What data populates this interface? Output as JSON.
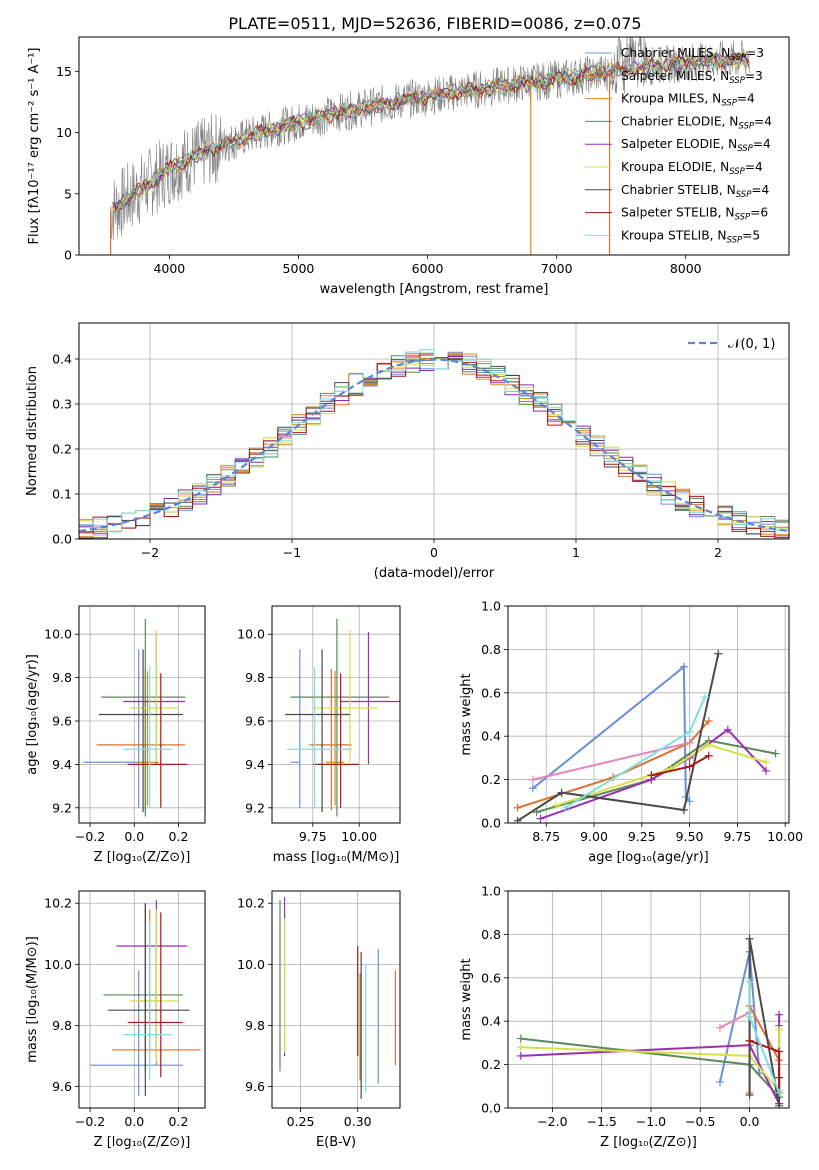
{
  "title": "PLATE=0511, MJD=52636, FIBERID=0086, z=0.075",
  "colors": [
    "#6a8fd8",
    "#e0892c",
    "#d67a1a",
    "#5a8a5a",
    "#8a2fa8",
    "#d6d64a",
    "#4a4a4a",
    "#a81818",
    "#7fd6d6"
  ],
  "chart_data": [
    {
      "id": "spectrum",
      "type": "line",
      "xlabel": "wavelength [Angstrom, rest frame]",
      "ylabel": "Flux [fλ10⁻¹⁷ erg cm⁻² s⁻¹ A⁻¹]",
      "xlim": [
        3300,
        8800
      ],
      "ylim": [
        0,
        17.8
      ],
      "xticks": [
        4000,
        5000,
        6000,
        7000,
        8000
      ],
      "yticks": [
        0,
        5,
        10,
        15
      ],
      "grid": false,
      "legend_position": "top-right",
      "legend": [
        {
          "label": "Chabrier MILES, N",
          "sub": "SSP",
          "suffix": "=3",
          "color": "#6a8fd8"
        },
        {
          "label": "Salpeter MILES, N",
          "sub": "SSP",
          "suffix": "=3",
          "color": "#e07030"
        },
        {
          "label": "Kroupa MILES, N",
          "sub": "SSP",
          "suffix": "=4",
          "color": "#d68a1a"
        },
        {
          "label": "Chabrier ELODIE, N",
          "sub": "SSP",
          "suffix": "=4",
          "color": "#5a8a5a"
        },
        {
          "label": "Salpeter ELODIE, N",
          "sub": "SSP",
          "suffix": "=4",
          "color": "#9a2fb0"
        },
        {
          "label": "Kroupa ELODIE, N",
          "sub": "SSP",
          "suffix": "=4",
          "color": "#d6e04a"
        },
        {
          "label": "Chabrier STELIB, N",
          "sub": "SSP",
          "suffix": "=4",
          "color": "#4a4a4a"
        },
        {
          "label": "Salpeter STELIB, N",
          "sub": "SSP",
          "suffix": "=6",
          "color": "#a81818"
        },
        {
          "label": "Kroupa STELIB, N",
          "sub": "SSP",
          "suffix": "=5",
          "color": "#80dede"
        }
      ],
      "model_continuum": {
        "x": [
          3550,
          3700,
          3850,
          4000,
          4150,
          4300,
          4500,
          4700,
          4900,
          5100,
          5300,
          5500,
          5700,
          5900,
          6100,
          6300,
          6500,
          6700,
          6900,
          7100,
          7300,
          7500,
          7700,
          7900,
          8100,
          8300,
          8500
        ],
        "y": [
          3.6,
          4.8,
          5.9,
          7.0,
          7.8,
          8.5,
          9.3,
          10.0,
          10.6,
          11.1,
          11.6,
          12.0,
          12.4,
          12.8,
          13.1,
          13.4,
          13.7,
          14.0,
          14.2,
          14.5,
          14.8,
          15.1,
          15.4,
          15.6,
          15.8,
          15.9,
          16.0
        ]
      }
    },
    {
      "id": "residuals",
      "type": "histogram",
      "xlabel": "(data-model)/error",
      "ylabel": "Normed distribution",
      "xlim": [
        -2.5,
        2.5
      ],
      "ylim": [
        0,
        0.48
      ],
      "xticks": [
        -2,
        -1,
        0,
        1,
        2
      ],
      "yticks": [
        0.0,
        0.1,
        0.2,
        0.3,
        0.4
      ],
      "grid": true,
      "legend_position": "top-right",
      "legend": [
        {
          "label": "𝒩(0, 1)",
          "color": "#5b86d6",
          "style": "dashed"
        }
      ]
    },
    {
      "id": "age-vs-Z",
      "type": "errorbar",
      "xlabel": "Z [log₁₀(Z/Z⊙)]",
      "ylabel": "age  [log₁₀(age/yr)]",
      "xlim": [
        -0.25,
        0.32
      ],
      "ylim": [
        9.13,
        10.13
      ],
      "xticks": [
        -0.2,
        0.0,
        0.2
      ],
      "yticks": [
        9.2,
        9.4,
        9.6,
        9.8,
        10.0
      ],
      "grid": true,
      "points": [
        {
          "x": 0.02,
          "xerr": [
            0.25,
            0.0
          ],
          "y": 9.41,
          "yerr": [
            0.21,
            0.52
          ],
          "color": "#6a8fd8"
        },
        {
          "x": 0.05,
          "xerr": [
            0.22,
            0.18
          ],
          "y": 9.49,
          "yerr": [
            0.3,
            0.35
          ],
          "color": "#e07030"
        },
        {
          "x": 0.06,
          "xerr": [
            0.05,
            0.05
          ],
          "y": 9.41,
          "yerr": [
            0.2,
            0.42
          ],
          "color": "#d68a1a"
        },
        {
          "x": 0.05,
          "xerr": [
            0.2,
            0.18
          ],
          "y": 9.71,
          "yerr": [
            0.55,
            0.36
          ],
          "color": "#5a8a5a"
        },
        {
          "x": 0.1,
          "xerr": [
            0.15,
            0.13
          ],
          "y": 9.69,
          "yerr": [
            0.29,
            0.32
          ],
          "color": "#9a2fb0"
        },
        {
          "x": 0.1,
          "xerr": [
            0.12,
            0.1
          ],
          "y": 9.66,
          "yerr": [
            0.25,
            0.36
          ],
          "color": "#d6e04a"
        },
        {
          "x": 0.04,
          "xerr": [
            0.2,
            0.18
          ],
          "y": 9.63,
          "yerr": [
            0.45,
            0.3
          ],
          "color": "#4a4a4a"
        },
        {
          "x": 0.12,
          "xerr": [
            0.15,
            0.12
          ],
          "y": 9.4,
          "yerr": [
            0.2,
            0.42
          ],
          "color": "#a81818"
        },
        {
          "x": 0.07,
          "xerr": [
            0.12,
            0.1
          ],
          "y": 9.47,
          "yerr": [
            0.27,
            0.38
          ],
          "color": "#80dede"
        }
      ]
    },
    {
      "id": "age-vs-mass",
      "type": "errorbar",
      "xlabel": "mass [log₁₀(M/M⊙)]",
      "ylabel": "",
      "xlim": [
        9.53,
        10.22
      ],
      "ylim": [
        9.13,
        10.13
      ],
      "xticks": [
        9.75,
        10.0
      ],
      "yticks": [
        9.2,
        9.4,
        9.6,
        9.8,
        10.0
      ],
      "grid": true,
      "points": [
        {
          "x": 9.68,
          "xerr": [
            0.05,
            0.0
          ],
          "y": 9.41,
          "yerr": [
            0.21,
            0.52
          ],
          "color": "#6a8fd8"
        },
        {
          "x": 9.85,
          "xerr": [
            0.12,
            0.11
          ],
          "y": 9.49,
          "yerr": [
            0.3,
            0.35
          ],
          "color": "#e07030"
        },
        {
          "x": 9.87,
          "xerr": [
            0.05,
            0.05
          ],
          "y": 9.41,
          "yerr": [
            0.2,
            0.42
          ],
          "color": "#d68a1a"
        },
        {
          "x": 9.88,
          "xerr": [
            0.25,
            0.28
          ],
          "y": 9.71,
          "yerr": [
            0.55,
            0.36
          ],
          "color": "#5a8a5a"
        },
        {
          "x": 10.05,
          "xerr": [
            0.15,
            0.18
          ],
          "y": 9.69,
          "yerr": [
            0.29,
            0.32
          ],
          "color": "#9a2fb0"
        },
        {
          "x": 9.95,
          "xerr": [
            0.2,
            0.15
          ],
          "y": 9.66,
          "yerr": [
            0.25,
            0.36
          ],
          "color": "#d6e04a"
        },
        {
          "x": 9.8,
          "xerr": [
            0.2,
            0.15
          ],
          "y": 9.63,
          "yerr": [
            0.45,
            0.3
          ],
          "color": "#4a4a4a"
        },
        {
          "x": 9.9,
          "xerr": [
            0.15,
            0.1
          ],
          "y": 9.4,
          "yerr": [
            0.2,
            0.42
          ],
          "color": "#a81818"
        },
        {
          "x": 9.76,
          "xerr": [
            0.15,
            0.2
          ],
          "y": 9.47,
          "yerr": [
            0.27,
            0.38
          ],
          "color": "#80dede"
        }
      ]
    },
    {
      "id": "mass-weight-vs-age",
      "type": "line",
      "xlabel": "age  [log₁₀(age/yr)]",
      "ylabel": "mass weight",
      "xlim": [
        8.55,
        10.02
      ],
      "ylim": [
        0.0,
        1.0
      ],
      "xticks": [
        8.75,
        9.0,
        9.25,
        9.5,
        9.75,
        10.0
      ],
      "yticks": [
        0.0,
        0.2,
        0.4,
        0.6,
        0.8,
        1.0
      ],
      "grid": true,
      "series": [
        {
          "color": "#6a8fd8",
          "x": [
            8.68,
            9.47,
            9.48,
            9.5
          ],
          "y": [
            0.16,
            0.72,
            0.12,
            0.1
          ]
        },
        {
          "color": "#e07030",
          "x": [
            8.6,
            9.1,
            9.5,
            9.6
          ],
          "y": [
            0.07,
            0.21,
            0.37,
            0.47
          ]
        },
        {
          "color": "#e888b8",
          "x": [
            8.68,
            9.5
          ],
          "y": [
            0.2,
            0.37
          ]
        },
        {
          "color": "#5a8a5a",
          "x": [
            8.7,
            9.3,
            9.6,
            9.95
          ],
          "y": [
            0.05,
            0.2,
            0.38,
            0.32
          ]
        },
        {
          "color": "#9a2fb0",
          "x": [
            8.72,
            9.3,
            9.5,
            9.7,
            9.9
          ],
          "y": [
            0.02,
            0.2,
            0.3,
            0.43,
            0.24
          ]
        },
        {
          "color": "#d6e04a",
          "x": [
            8.8,
            9.4,
            9.6,
            9.9
          ],
          "y": [
            0.08,
            0.25,
            0.36,
            0.28
          ]
        },
        {
          "color": "#4a4a4a",
          "x": [
            8.6,
            8.83,
            9.47,
            9.65
          ],
          "y": [
            0.01,
            0.14,
            0.06,
            0.78
          ]
        },
        {
          "color": "#a81818",
          "x": [
            9.3,
            9.5,
            9.6
          ],
          "y": [
            0.22,
            0.26,
            0.31
          ]
        },
        {
          "color": "#80dede",
          "x": [
            8.85,
            9.5,
            9.58
          ],
          "y": [
            0.07,
            0.42,
            0.58
          ]
        }
      ]
    },
    {
      "id": "mass-vs-Z",
      "type": "errorbar",
      "xlabel": "Z [log₁₀(Z/Z⊙)]",
      "ylabel": "mass [log₁₀(M/M⊙)]",
      "xlim": [
        -0.25,
        0.32
      ],
      "ylim": [
        9.53,
        10.24
      ],
      "xticks": [
        -0.2,
        0.0,
        0.2
      ],
      "yticks": [
        9.6,
        9.8,
        10.0,
        10.2
      ],
      "grid": true,
      "points": [
        {
          "x": 0.02,
          "xerr": [
            0.22,
            0.2
          ],
          "y": 9.67,
          "yerr": [
            0.1,
            0.31
          ],
          "color": "#6a8fd8"
        },
        {
          "x": 0.1,
          "xerr": [
            0.2,
            0.2
          ],
          "y": 9.72,
          "yerr": [
            0.05,
            0.35
          ],
          "color": "#e07030"
        },
        {
          "x": 0.07,
          "xerr": [
            0.05,
            0.05
          ],
          "y": 9.88,
          "yerr": [
            0.17,
            0.3
          ],
          "color": "#d68a1a"
        },
        {
          "x": 0.05,
          "xerr": [
            0.19,
            0.17
          ],
          "y": 9.9,
          "yerr": [
            0.25,
            0.3
          ],
          "color": "#5a8a5a"
        },
        {
          "x": 0.1,
          "xerr": [
            0.18,
            0.14
          ],
          "y": 10.06,
          "yerr": [
            0.35,
            0.15
          ],
          "color": "#9a2fb0"
        },
        {
          "x": 0.1,
          "xerr": [
            0.12,
            0.1
          ],
          "y": 9.88,
          "yerr": [
            0.2,
            0.3
          ],
          "color": "#d6e04a"
        },
        {
          "x": 0.05,
          "xerr": [
            0.17,
            0.2
          ],
          "y": 9.85,
          "yerr": [
            0.28,
            0.35
          ],
          "color": "#4a4a4a"
        },
        {
          "x": 0.12,
          "xerr": [
            0.15,
            0.1
          ],
          "y": 9.81,
          "yerr": [
            0.18,
            0.36
          ],
          "color": "#a81818"
        },
        {
          "x": 0.07,
          "xerr": [
            0.12,
            0.1
          ],
          "y": 9.77,
          "yerr": [
            0.15,
            0.37
          ],
          "color": "#80dede"
        }
      ]
    },
    {
      "id": "mass-vs-EBV",
      "type": "errorbar",
      "xlabel": "E(B-V)",
      "ylabel": "",
      "xlim": [
        0.225,
        0.337
      ],
      "ylim": [
        9.53,
        10.24
      ],
      "xticks": [
        0.25,
        0.3
      ],
      "yticks": [
        9.6,
        9.8,
        10.0,
        10.2
      ],
      "grid": true,
      "points": [
        {
          "x": 0.318,
          "y": 9.83,
          "yerr": [
            0.22,
            0.22
          ],
          "color": "#6a8fd8"
        },
        {
          "x": 0.333,
          "y": 9.84,
          "yerr": [
            0.17,
            0.14
          ],
          "color": "#e07030"
        },
        {
          "x": 0.302,
          "y": 9.77,
          "yerr": [
            0.15,
            0.2
          ],
          "color": "#d68a1a"
        },
        {
          "x": 0.232,
          "y": 9.93,
          "yerr": [
            0.28,
            0.28
          ],
          "color": "#5a8a5a"
        },
        {
          "x": 0.236,
          "y": 9.95,
          "yerr": [
            0.25,
            0.27
          ],
          "color": "#9a2fb0"
        },
        {
          "x": 0.236,
          "y": 9.93,
          "yerr": [
            0.22,
            0.22
          ],
          "color": "#d6e04a"
        },
        {
          "x": 0.303,
          "y": 9.84,
          "yerr": [
            0.28,
            0.2
          ],
          "color": "#4a4a4a"
        },
        {
          "x": 0.3,
          "y": 9.88,
          "yerr": [
            0.18,
            0.18
          ],
          "color": "#a81818"
        },
        {
          "x": 0.307,
          "y": 9.8,
          "yerr": [
            0.22,
            0.2
          ],
          "color": "#80dede"
        }
      ]
    },
    {
      "id": "mass-weight-vs-Z",
      "type": "line",
      "xlabel": "Z [log₁₀(Z/Z⊙)]",
      "ylabel": "mass weight",
      "xlim": [
        -2.45,
        0.4
      ],
      "ylim": [
        0.0,
        1.0
      ],
      "xticks": [
        -2.0,
        -1.5,
        -1.0,
        -0.5,
        0.0
      ],
      "yticks": [
        0.0,
        0.2,
        0.4,
        0.6,
        0.8,
        1.0
      ],
      "grid": true,
      "series": [
        {
          "color": "#6a8fd8",
          "x": [
            -0.3,
            0.0,
            0.1
          ],
          "y": [
            0.12,
            0.72,
            0.16
          ]
        },
        {
          "color": "#e07030",
          "x": [
            0.0,
            0.0,
            0.3
          ],
          "y": [
            0.07,
            0.47,
            0.22
          ]
        },
        {
          "color": "#e888b8",
          "x": [
            -0.3,
            0.0
          ],
          "y": [
            0.37,
            0.44
          ]
        },
        {
          "color": "#5a8a5a",
          "x": [
            -2.32,
            0.0,
            0.3,
            0.3
          ],
          "y": [
            0.32,
            0.2,
            0.05,
            0.38
          ]
        },
        {
          "color": "#9a2fb0",
          "x": [
            -2.32,
            0.0,
            0.3,
            0.3
          ],
          "y": [
            0.24,
            0.29,
            0.02,
            0.43
          ]
        },
        {
          "color": "#d6e04a",
          "x": [
            -2.32,
            0.0,
            0.3,
            0.3
          ],
          "y": [
            0.28,
            0.24,
            0.08,
            0.36
          ]
        },
        {
          "color": "#4a4a4a",
          "x": [
            0.0,
            0.0,
            0.3,
            0.3
          ],
          "y": [
            0.06,
            0.78,
            0.01,
            0.14
          ]
        },
        {
          "color": "#a81818",
          "x": [
            0.0,
            0.3,
            0.3
          ],
          "y": [
            0.31,
            0.26,
            0.07
          ]
        },
        {
          "color": "#80dede",
          "x": [
            0.0,
            0.0,
            0.3
          ],
          "y": [
            0.58,
            0.42,
            0.07
          ]
        }
      ]
    }
  ]
}
